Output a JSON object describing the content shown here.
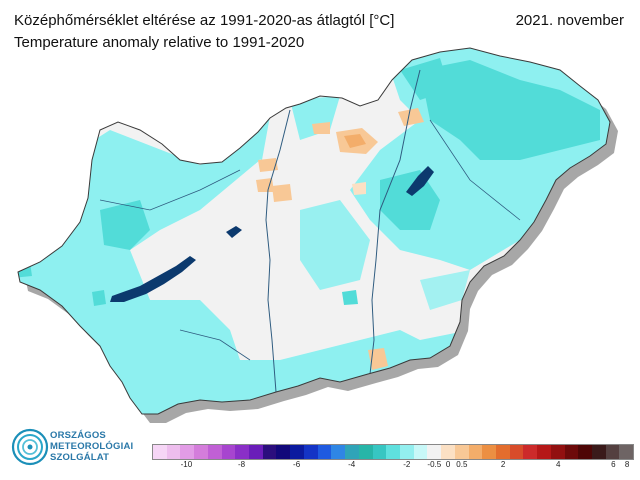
{
  "title_hu": "Középhőmérséklet eltérése az 1991-2020-as átlagtól [°C]",
  "title_en": "Temperature anomaly relative to 1991-2020",
  "date": "2021. november",
  "logo": {
    "line1": "ORSZÁGOS",
    "line2": "METEOROLÓGIAI",
    "line3": "SZOLGÁLAT"
  },
  "legend": {
    "colors": [
      "#f6d6f6",
      "#eebeee",
      "#e29ce6",
      "#d47ddb",
      "#c060d5",
      "#a745cf",
      "#8a2fc7",
      "#6a1db9",
      "#2b0e7d",
      "#12087a",
      "#0b1a9f",
      "#1434c6",
      "#1f5ae0",
      "#2f86e5",
      "#2fa4b8",
      "#27b5a8",
      "#37c6c2",
      "#5fe0de",
      "#93efef",
      "#c8f8f8",
      "#f2f2f2",
      "#fbe0c4",
      "#f8c896",
      "#f3ad6a",
      "#ec8f42",
      "#e36d2d",
      "#d84c2a",
      "#cc2a2a",
      "#b51717",
      "#921010",
      "#6d0a0a",
      "#4e0606",
      "#3a1a1a",
      "#544040",
      "#6e6464"
    ],
    "labels": [
      "-10",
      "-8",
      "-6",
      "-4",
      "-2",
      "-0.5",
      "0",
      "0.5",
      "2",
      "4",
      "6",
      "8"
    ]
  }
}
